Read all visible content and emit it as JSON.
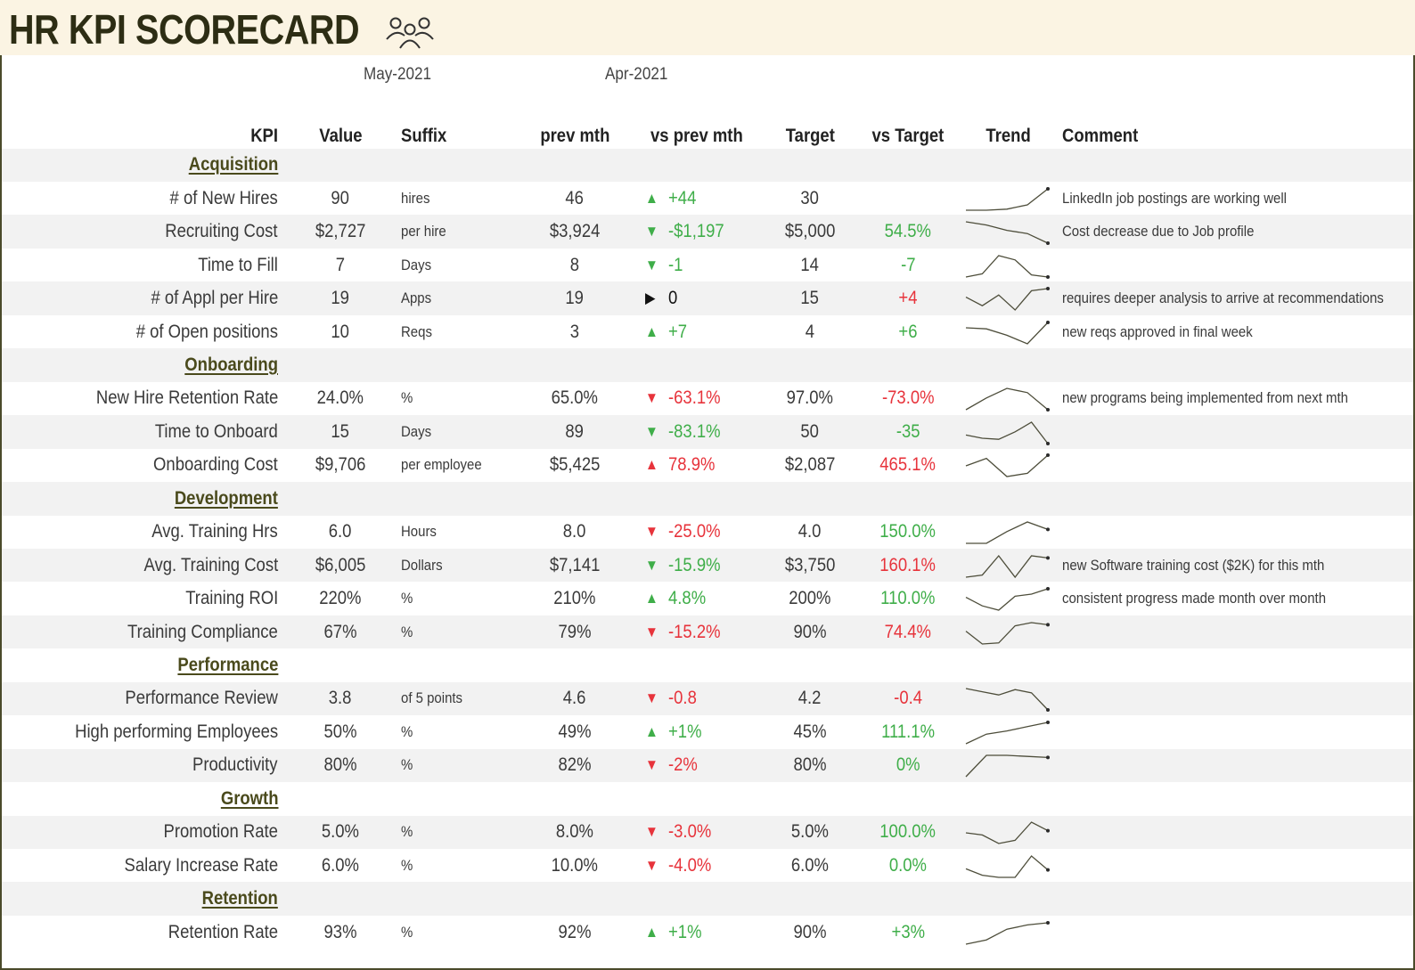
{
  "title": "HR KPI SCORECARD",
  "icon": "people-group-icon",
  "periods": {
    "current": "May-2021",
    "previous": "Apr-2021"
  },
  "columns": {
    "kpi": "KPI",
    "value": "Value",
    "suffix": "Suffix",
    "prev": "prev mth",
    "vs_prev": "vs prev mth",
    "target": "Target",
    "vs_target": "vs Target",
    "trend": "Trend",
    "comment": "Comment"
  },
  "colors": {
    "positive": "#3fae49",
    "negative": "#e7333b",
    "neutral": "#111111",
    "title_band": "#fbf4e3",
    "row_shade": "#f2f2f2"
  },
  "sections": [
    {
      "name": "Acquisition",
      "rows": [
        {
          "kpi": "# of New Hires",
          "value": "90",
          "suffix": "hires",
          "prev": "46",
          "arrow": "up",
          "arrow_color": "green",
          "vs_prev": "+44",
          "vs_prev_color": "green",
          "target": "30",
          "vs_target": "",
          "vs_target_color": "green",
          "trend": [
            0.0,
            0.0,
            0.05,
            0.25,
            1.0
          ],
          "comment": "LinkedIn job postings are working well"
        },
        {
          "kpi": "Recruiting Cost",
          "value": "$2,727",
          "suffix": "per hire",
          "prev": "$3,924",
          "arrow": "down",
          "arrow_color": "green",
          "vs_prev": "-$1,197",
          "vs_prev_color": "green",
          "target": "$5,000",
          "vs_target": "54.5%",
          "vs_target_color": "green",
          "trend": [
            1.0,
            0.85,
            0.6,
            0.45,
            0.0
          ],
          "comment": "Cost decrease due to Job profile"
        },
        {
          "kpi": "Time to Fill",
          "value": "7",
          "suffix": "Days",
          "prev": "8",
          "arrow": "down",
          "arrow_color": "green",
          "vs_prev": "-1",
          "vs_prev_color": "green",
          "target": "14",
          "vs_target": "-7",
          "vs_target_color": "green",
          "trend": [
            0.0,
            0.15,
            1.0,
            0.8,
            0.1,
            0.0
          ],
          "comment": ""
        },
        {
          "kpi": "# of Appl per Hire",
          "value": "19",
          "suffix": "Apps",
          "prev": "19",
          "arrow": "flat",
          "arrow_color": "dark",
          "vs_prev": "0",
          "vs_prev_color": "dark",
          "target": "15",
          "vs_target": "+4",
          "vs_target_color": "red",
          "trend": [
            0.6,
            0.2,
            0.7,
            0.0,
            0.9,
            1.0
          ],
          "comment": "requires deeper analysis to arrive at recommendations"
        },
        {
          "kpi": "# of Open positions",
          "value": "10",
          "suffix": "Reqs",
          "prev": "3",
          "arrow": "up",
          "arrow_color": "green",
          "vs_prev": "+7",
          "vs_prev_color": "green",
          "target": "4",
          "vs_target": "+6",
          "vs_target_color": "green",
          "trend": [
            0.75,
            0.7,
            0.4,
            0.0,
            1.0
          ],
          "comment": "new reqs approved in final week"
        }
      ]
    },
    {
      "name": "Onboarding",
      "rows": [
        {
          "kpi": "New Hire Retention Rate",
          "value": "24.0%",
          "suffix": "%",
          "prev": "65.0%",
          "arrow": "down",
          "arrow_color": "red",
          "vs_prev": "-63.1%",
          "vs_prev_color": "red",
          "target": "97.0%",
          "vs_target": "-73.0%",
          "vs_target_color": "red",
          "trend": [
            0.0,
            0.55,
            1.0,
            0.8,
            0.0
          ],
          "comment": "new programs being implemented from next mth"
        },
        {
          "kpi": "Time to Onboard",
          "value": "15",
          "suffix": "Days",
          "prev": "89",
          "arrow": "down",
          "arrow_color": "green",
          "vs_prev": "-83.1%",
          "vs_prev_color": "green",
          "target": "50",
          "vs_target": "-35",
          "vs_target_color": "green",
          "trend": [
            0.4,
            0.25,
            0.2,
            0.55,
            1.0,
            0.0
          ],
          "comment": ""
        },
        {
          "kpi": "Onboarding Cost",
          "value": "$9,706",
          "suffix": "per employee",
          "prev": "$5,425",
          "arrow": "up",
          "arrow_color": "red",
          "vs_prev": "78.9%",
          "vs_prev_color": "red",
          "target": "$2,087",
          "vs_target": "465.1%",
          "vs_target_color": "red",
          "trend": [
            0.5,
            0.85,
            0.0,
            0.15,
            1.0
          ],
          "comment": ""
        }
      ]
    },
    {
      "name": "Development",
      "rows": [
        {
          "kpi": "Avg. Training Hrs",
          "value": "6.0",
          "suffix": "Hours",
          "prev": "8.0",
          "arrow": "down",
          "arrow_color": "red",
          "vs_prev": "-25.0%",
          "vs_prev_color": "red",
          "target": "4.0",
          "vs_target": "150.0%",
          "vs_target_color": "green",
          "trend": [
            0.0,
            0.0,
            0.55,
            1.0,
            0.65
          ],
          "comment": ""
        },
        {
          "kpi": "Avg. Training Cost",
          "value": "$6,005",
          "suffix": "Dollars",
          "prev": "$7,141",
          "arrow": "down",
          "arrow_color": "green",
          "vs_prev": "-15.9%",
          "vs_prev_color": "green",
          "target": "$3,750",
          "vs_target": "160.1%",
          "vs_target_color": "red",
          "trend": [
            0.0,
            0.1,
            1.0,
            0.0,
            1.0,
            0.9
          ],
          "comment": "new Software training cost ($2K) for this mth"
        },
        {
          "kpi": "Training ROI",
          "value": "220%",
          "suffix": "%",
          "prev": "210%",
          "arrow": "up",
          "arrow_color": "green",
          "vs_prev": "4.8%",
          "vs_prev_color": "green",
          "target": "200%",
          "vs_target": "110.0%",
          "vs_target_color": "green",
          "trend": [
            0.6,
            0.2,
            0.0,
            0.65,
            0.75,
            1.0
          ],
          "comment": "consistent progress made month over month"
        },
        {
          "kpi": "Training Compliance",
          "value": "67%",
          "suffix": "%",
          "prev": "79%",
          "arrow": "down",
          "arrow_color": "red",
          "vs_prev": "-15.2%",
          "vs_prev_color": "red",
          "target": "90%",
          "vs_target": "74.4%",
          "vs_target_color": "red",
          "trend": [
            0.6,
            0.0,
            0.05,
            0.85,
            1.0,
            0.9
          ],
          "comment": ""
        }
      ]
    },
    {
      "name": "Performance",
      "rows": [
        {
          "kpi": "Performance Review",
          "value": "3.8",
          "suffix": "of 5 points",
          "prev": "4.6",
          "arrow": "down",
          "arrow_color": "red",
          "vs_prev": "-0.8",
          "vs_prev_color": "red",
          "target": "4.2",
          "vs_target": "-0.4",
          "vs_target_color": "red",
          "trend": [
            1.0,
            0.85,
            0.7,
            0.95,
            0.8,
            0.0
          ],
          "comment": ""
        },
        {
          "kpi": "High performing Employees",
          "value": "50%",
          "suffix": "%",
          "prev": "49%",
          "arrow": "up",
          "arrow_color": "green",
          "vs_prev": "+1%",
          "vs_prev_color": "green",
          "target": "45%",
          "vs_target": "111.1%",
          "vs_target_color": "green",
          "trend": [
            0.0,
            0.45,
            0.6,
            0.8,
            1.0
          ],
          "comment": ""
        },
        {
          "kpi": "Productivity",
          "value": "80%",
          "suffix": "%",
          "prev": "82%",
          "arrow": "down",
          "arrow_color": "red",
          "vs_prev": "-2%",
          "vs_prev_color": "red",
          "target": "80%",
          "vs_target": "0%",
          "vs_target_color": "green",
          "trend": [
            0.0,
            1.0,
            1.0,
            0.95,
            0.9
          ],
          "comment": ""
        }
      ]
    },
    {
      "name": "Growth",
      "rows": [
        {
          "kpi": "Promotion Rate",
          "value": "5.0%",
          "suffix": "%",
          "prev": "8.0%",
          "arrow": "down",
          "arrow_color": "red",
          "vs_prev": "-3.0%",
          "vs_prev_color": "red",
          "target": "5.0%",
          "vs_target": "100.0%",
          "vs_target_color": "green",
          "trend": [
            0.5,
            0.4,
            0.0,
            0.15,
            1.0,
            0.6
          ],
          "comment": ""
        },
        {
          "kpi": "Salary Increase Rate",
          "value": "6.0%",
          "suffix": "%",
          "prev": "10.0%",
          "arrow": "down",
          "arrow_color": "red",
          "vs_prev": "-4.0%",
          "vs_prev_color": "red",
          "target": "6.0%",
          "vs_target": "0.0%",
          "vs_target_color": "green",
          "trend": [
            0.4,
            0.1,
            0.0,
            0.0,
            1.0,
            0.35
          ],
          "comment": ""
        }
      ]
    },
    {
      "name": "Retention",
      "rows": [
        {
          "kpi": "Retention Rate",
          "value": "93%",
          "suffix": "%",
          "prev": "92%",
          "arrow": "up",
          "arrow_color": "green",
          "vs_prev": "+1%",
          "vs_prev_color": "green",
          "target": "90%",
          "vs_target": "+3%",
          "vs_target_color": "green",
          "trend": [
            0.0,
            0.2,
            0.7,
            0.9,
            1.0
          ],
          "comment": ""
        }
      ]
    }
  ]
}
